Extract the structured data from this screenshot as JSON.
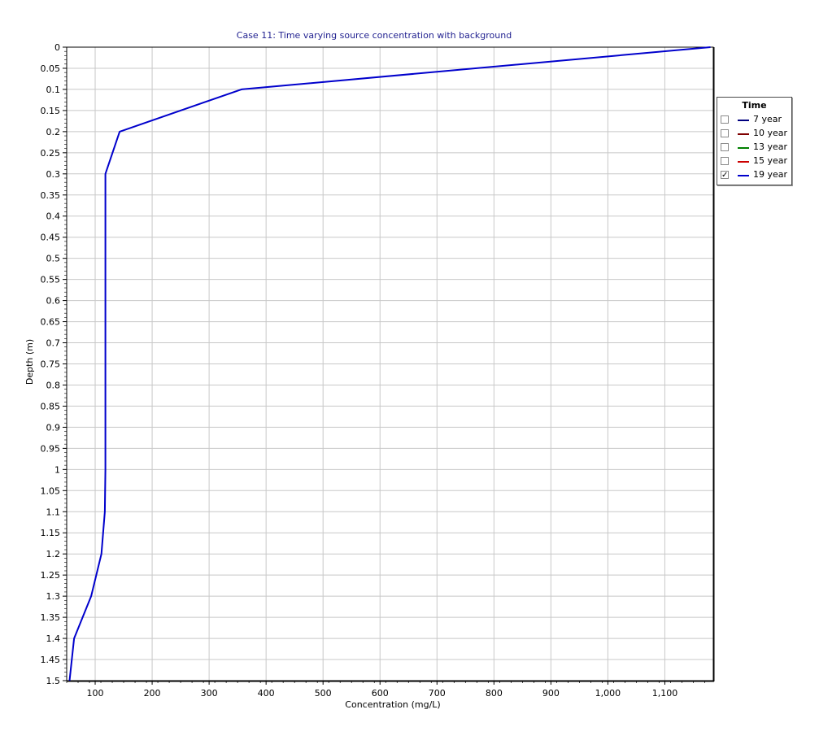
{
  "chart_data": {
    "type": "line",
    "title": "Case 11: Time varying source concentration with background",
    "xlabel": "Concentration (mg/L)",
    "ylabel": "Depth (m)",
    "xlim": [
      50,
      1185
    ],
    "ylim": [
      0,
      1.5
    ],
    "y_inverted": true,
    "grid": true,
    "x_ticks": [
      100,
      200,
      300,
      400,
      500,
      600,
      700,
      800,
      900,
      1000,
      1100
    ],
    "x_tick_labels": [
      "100",
      "200",
      "300",
      "400",
      "500",
      "600",
      "700",
      "800",
      "900",
      "1,000",
      "1,100"
    ],
    "y_ticks": [
      0,
      0.05,
      0.1,
      0.15,
      0.2,
      0.25,
      0.3,
      0.35,
      0.4,
      0.45,
      0.5,
      0.55,
      0.6,
      0.65,
      0.7,
      0.75,
      0.8,
      0.85,
      0.9,
      0.95,
      1,
      1.05,
      1.1,
      1.15,
      1.2,
      1.25,
      1.3,
      1.35,
      1.4,
      1.45,
      1.5
    ],
    "y_tick_labels": [
      "0",
      "0.05",
      "0.1",
      "0.15",
      "0.2",
      "0.25",
      "0.3",
      "0.35",
      "0.4",
      "0.45",
      "0.5",
      "0.55",
      "0.6",
      "0.65",
      "0.7",
      "0.75",
      "0.8",
      "0.85",
      "0.9",
      "0.95",
      "1",
      "1.05",
      "1.1",
      "1.15",
      "1.2",
      "1.25",
      "1.3",
      "1.35",
      "1.4",
      "1.45",
      "1.5"
    ],
    "legend_title": "Time",
    "legend_position": "right",
    "series": [
      {
        "name": "7 year",
        "color": "#00007f",
        "visible": false,
        "points": []
      },
      {
        "name": "10 year",
        "color": "#7f0000",
        "visible": false,
        "points": []
      },
      {
        "name": "13 year",
        "color": "#007f00",
        "visible": false,
        "points": []
      },
      {
        "name": "15 year",
        "color": "#cc0000",
        "visible": false,
        "points": []
      },
      {
        "name": "19 year",
        "color": "#0000cc",
        "visible": true,
        "points": [
          [
            1180,
            0
          ],
          [
            357,
            0.1
          ],
          [
            143,
            0.2
          ],
          [
            118,
            0.3
          ],
          [
            118,
            0.5
          ],
          [
            118,
            1.0
          ],
          [
            117,
            1.1
          ],
          [
            111,
            1.2
          ],
          [
            93,
            1.3
          ],
          [
            63,
            1.4
          ],
          [
            55,
            1.5
          ]
        ]
      }
    ]
  }
}
